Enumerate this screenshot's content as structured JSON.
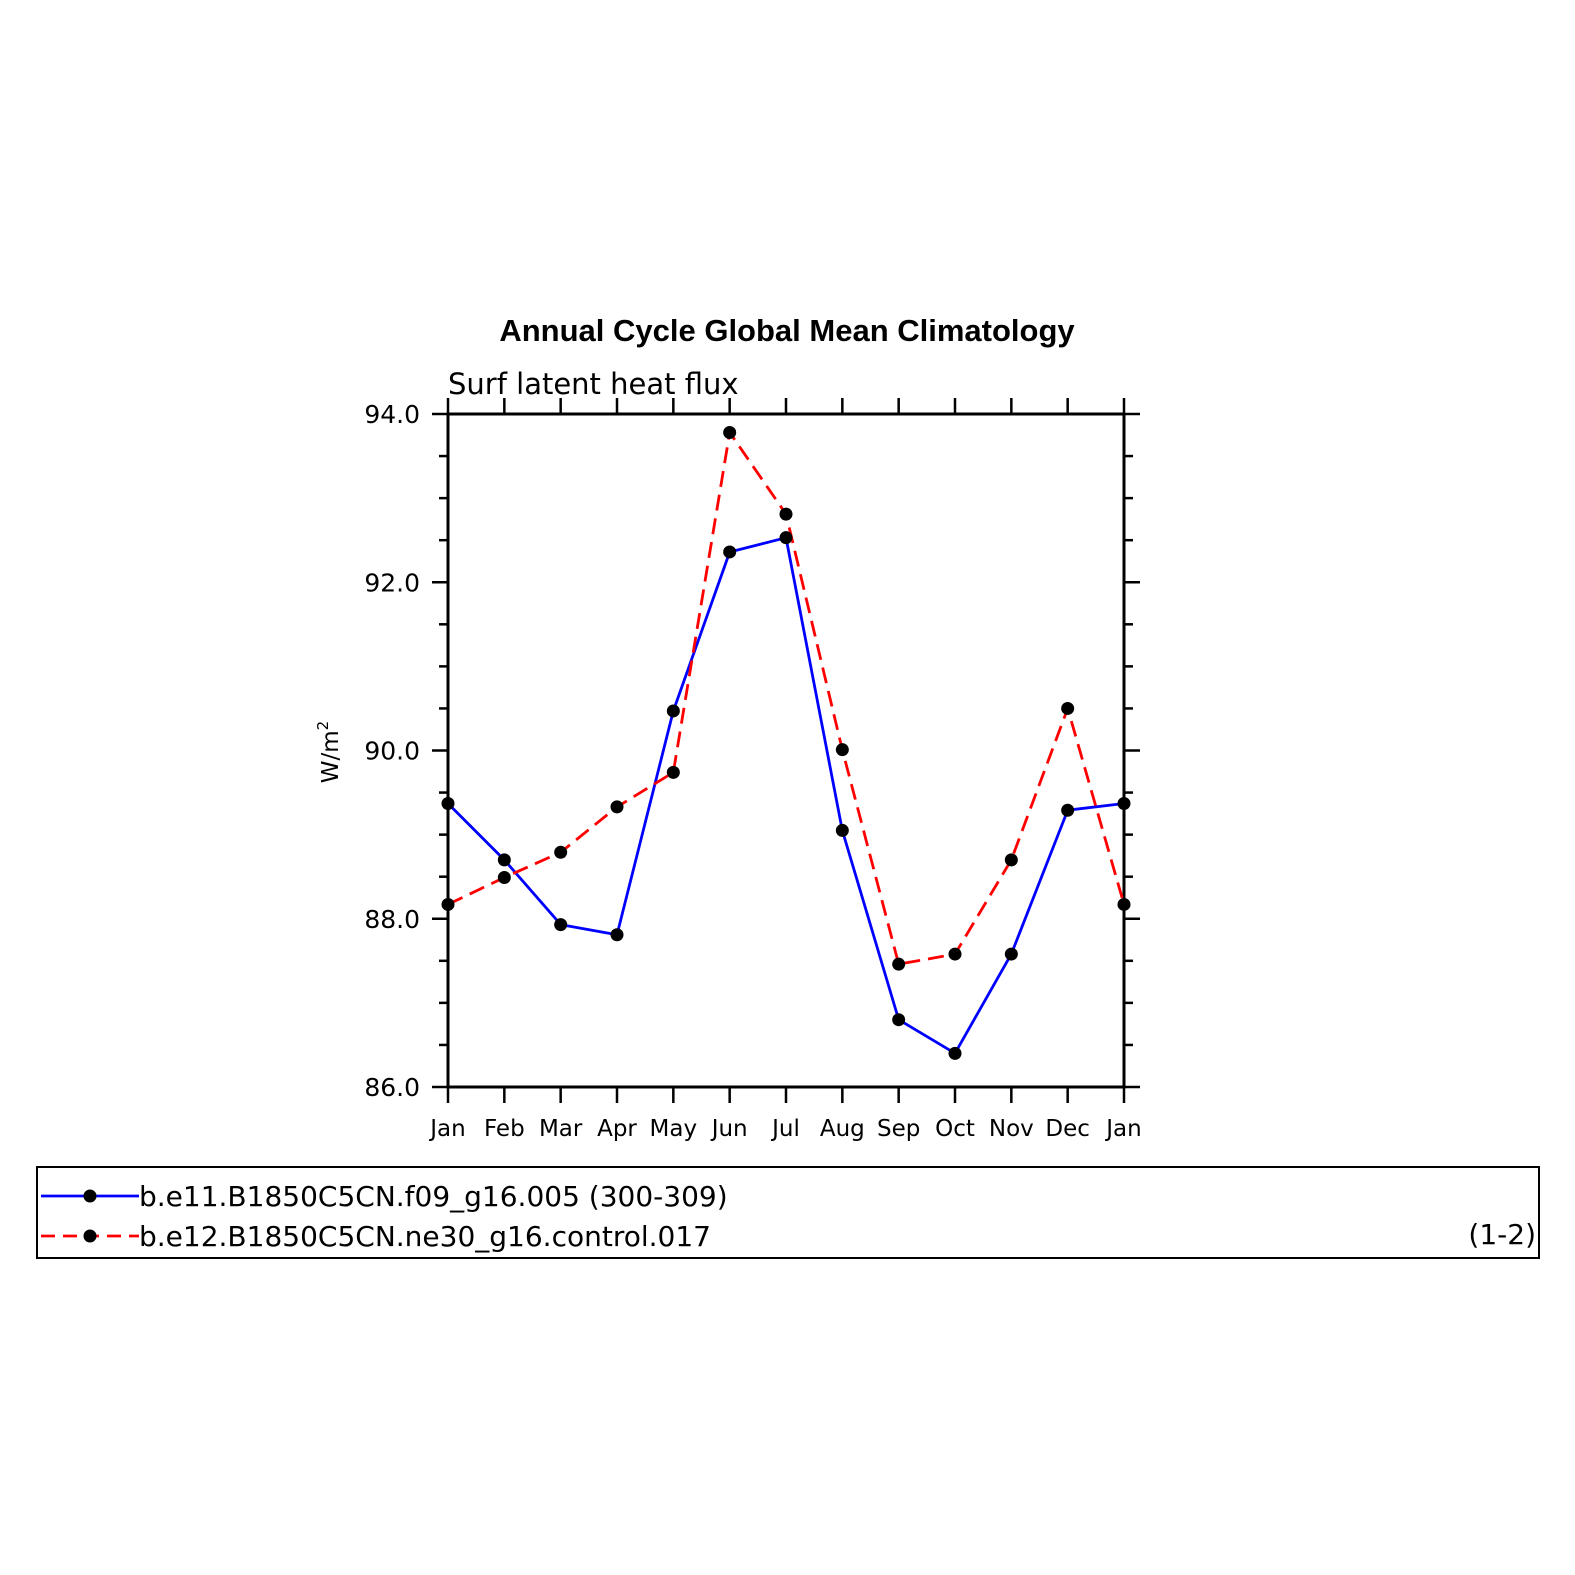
{
  "chart_data": {
    "type": "line",
    "title": "Annual Cycle Global Mean Climatology",
    "subtitle": "Surf latent heat flux",
    "ylabel": "W/m",
    "ylabel_superscript": "2",
    "ylim": [
      86.0,
      94.0
    ],
    "yticks": [
      "86.0",
      "88.0",
      "90.0",
      "92.0",
      "94.0"
    ],
    "categories": [
      "Jan",
      "Feb",
      "Mar",
      "Apr",
      "May",
      "Jun",
      "Jul",
      "Aug",
      "Sep",
      "Oct",
      "Nov",
      "Dec",
      "Jan"
    ],
    "grid": false,
    "legend_position": "bottom",
    "series": [
      {
        "name": "b.e11.B1850C5CN.f09_g16.005 (300-309)",
        "color": "#0000ff",
        "dash": "solid",
        "values": [
          89.37,
          88.7,
          87.93,
          87.81,
          90.47,
          92.36,
          92.53,
          89.05,
          86.8,
          86.4,
          87.58,
          89.29,
          89.37
        ]
      },
      {
        "name": "b.e12.B1850C5CN.ne30_g16.control.017",
        "color": "#ff0000",
        "dash": "dashed",
        "values": [
          88.17,
          88.49,
          88.79,
          89.33,
          89.74,
          93.78,
          92.81,
          90.01,
          87.46,
          87.58,
          88.7,
          90.5,
          88.17
        ]
      }
    ],
    "legend_note": "(1-2)",
    "marker_color": "#000000"
  }
}
